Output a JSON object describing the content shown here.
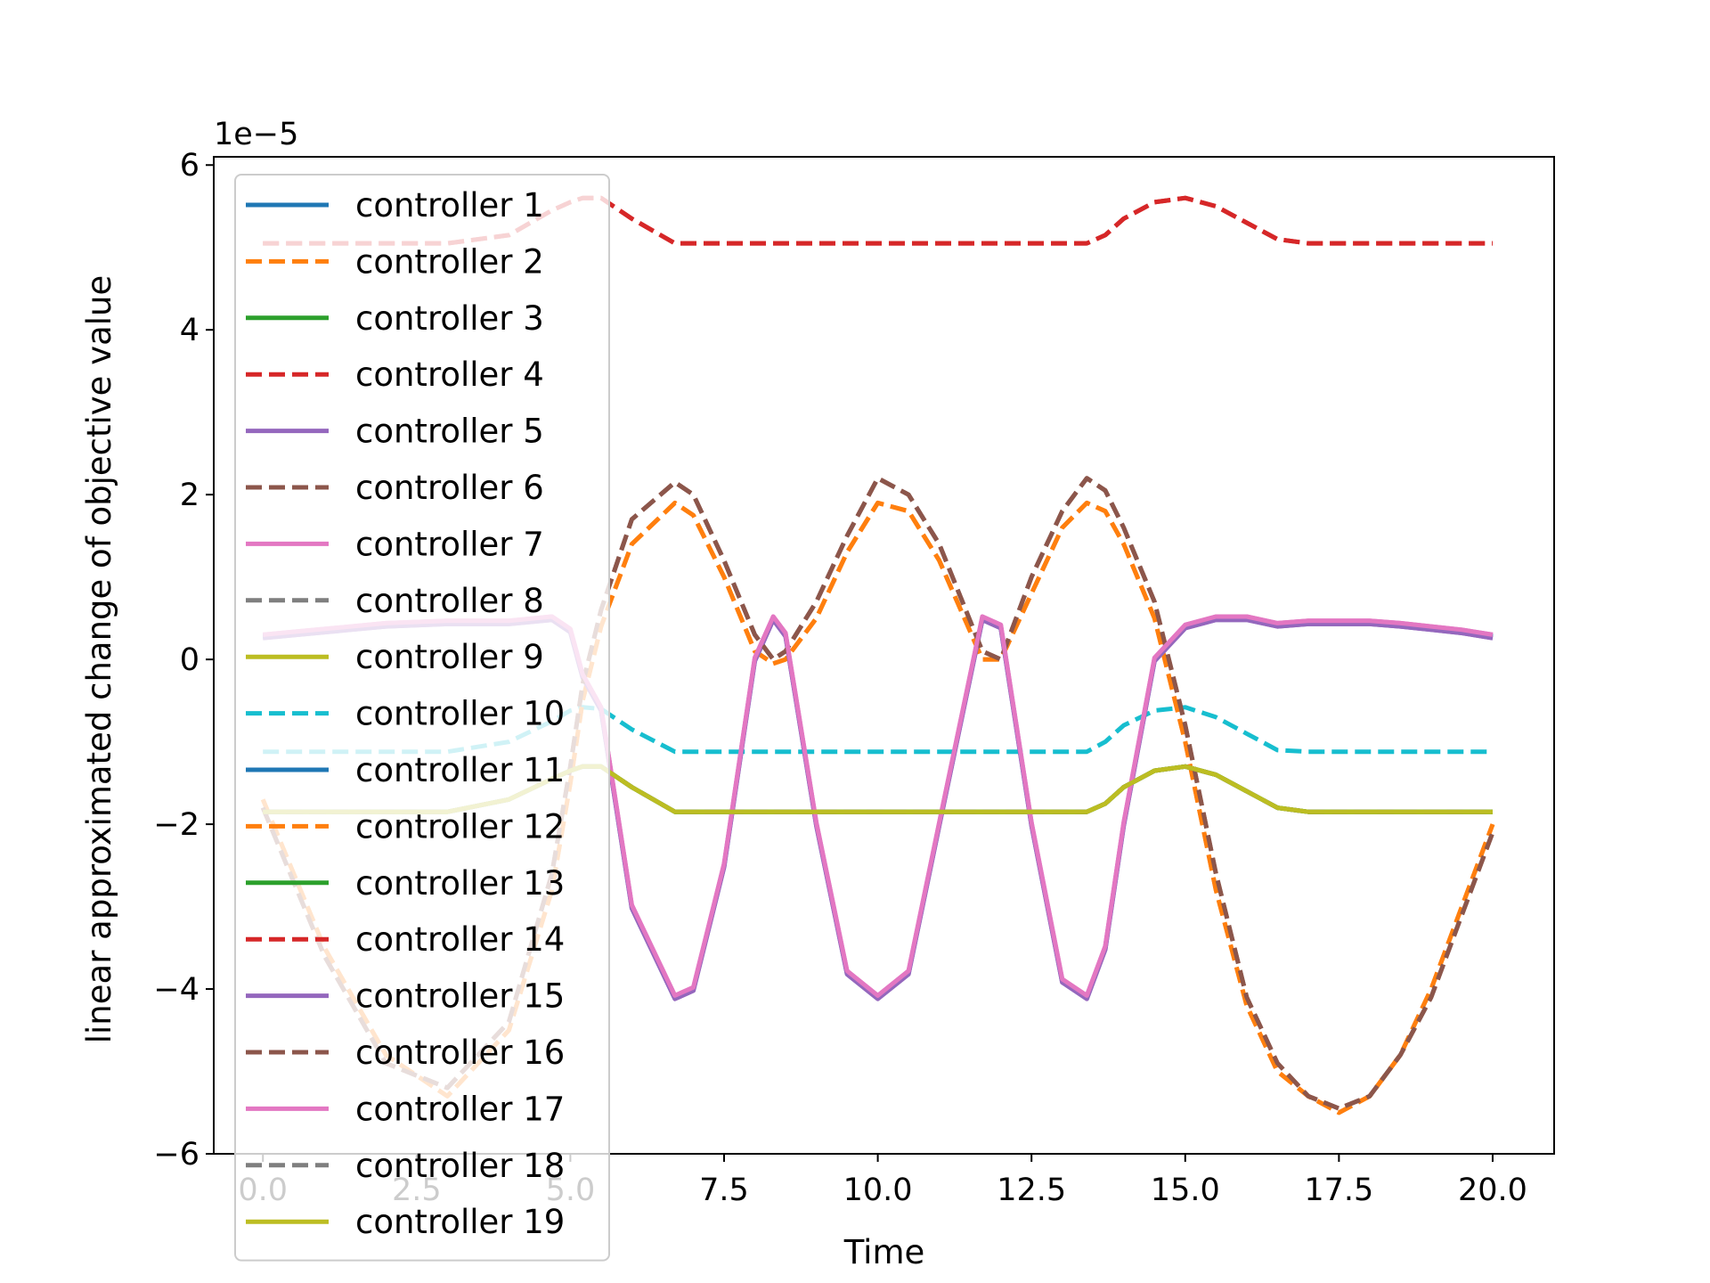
{
  "chart_data": {
    "type": "line",
    "title": "",
    "xlabel": "Time",
    "ylabel": "linear approximated change of objective value",
    "y_offset_text": "1e−5",
    "xlim": [
      -0.8,
      21.0
    ],
    "ylim": [
      -6.0,
      6.1
    ],
    "x_ticks": [
      0.0,
      2.5,
      5.0,
      7.5,
      10.0,
      12.5,
      15.0,
      17.5,
      20.0
    ],
    "x_tick_labels": [
      "0.0",
      "2.5",
      "5.0",
      "7.5",
      "10.0",
      "12.5",
      "15.0",
      "17.5",
      "20.0"
    ],
    "y_ticks": [
      -6,
      -4,
      -2,
      0,
      2,
      4,
      6
    ],
    "y_tick_labels": [
      "−6",
      "−4",
      "−2",
      "0",
      "2",
      "4",
      "6"
    ],
    "legend_position": "upper-left",
    "grid": false,
    "x": [
      0,
      1,
      2,
      3,
      4,
      4.7,
      5,
      5.2,
      5.5,
      6,
      6.7,
      7,
      7.5,
      8,
      8.3,
      8.5,
      9,
      9.5,
      10,
      10.5,
      11,
      11.7,
      12,
      12.5,
      13,
      13.4,
      13.7,
      14,
      14.5,
      15,
      15.5,
      16,
      16.5,
      17,
      17.5,
      18,
      18.5,
      19,
      19.5,
      20
    ],
    "series": [
      {
        "name": "controller 1",
        "color": "#1f77b4",
        "dash": "solid",
        "values": [
          0.28,
          0.35,
          0.42,
          0.45,
          0.45,
          0.5,
          0.35,
          -0.2,
          -0.6,
          -3.0,
          -4.1,
          -4.0,
          -2.5,
          0.0,
          0.5,
          0.3,
          -2.0,
          -3.8,
          -4.1,
          -3.8,
          -2.0,
          0.5,
          0.4,
          -2.0,
          -3.9,
          -4.1,
          -3.5,
          -2.0,
          0.0,
          0.4,
          0.5,
          0.5,
          0.42,
          0.45,
          0.45,
          0.45,
          0.42,
          0.38,
          0.34,
          0.28
        ]
      },
      {
        "name": "controller 2",
        "color": "#ff7f0e",
        "dash": "dashed",
        "values": [
          -1.7,
          -3.5,
          -4.8,
          -5.3,
          -4.5,
          -2.8,
          -1.5,
          -0.5,
          0.4,
          1.4,
          1.9,
          1.75,
          1.0,
          0.1,
          -0.05,
          0.0,
          0.5,
          1.3,
          1.9,
          1.8,
          1.2,
          0.0,
          0.0,
          0.8,
          1.6,
          1.9,
          1.8,
          1.4,
          0.5,
          -1.0,
          -2.8,
          -4.2,
          -5.0,
          -5.3,
          -5.5,
          -5.3,
          -4.8,
          -4.0,
          -3.0,
          -2.0
        ]
      },
      {
        "name": "controller 3",
        "color": "#2ca02c",
        "dash": "solid",
        "values": [
          -1.85,
          -1.85,
          -1.85,
          -1.85,
          -1.7,
          -1.45,
          -1.35,
          -1.3,
          -1.3,
          -1.55,
          -1.85,
          -1.85,
          -1.85,
          -1.85,
          -1.85,
          -1.85,
          -1.85,
          -1.85,
          -1.85,
          -1.85,
          -1.85,
          -1.85,
          -1.85,
          -1.85,
          -1.85,
          -1.85,
          -1.75,
          -1.55,
          -1.35,
          -1.3,
          -1.4,
          -1.6,
          -1.8,
          -1.85,
          -1.85,
          -1.85,
          -1.85,
          -1.85,
          -1.85,
          -1.85
        ]
      },
      {
        "name": "controller 4",
        "color": "#d62728",
        "dash": "dashed",
        "values": [
          5.05,
          5.05,
          5.05,
          5.05,
          5.15,
          5.45,
          5.55,
          5.6,
          5.6,
          5.35,
          5.05,
          5.05,
          5.05,
          5.05,
          5.05,
          5.05,
          5.05,
          5.05,
          5.05,
          5.05,
          5.05,
          5.05,
          5.05,
          5.05,
          5.05,
          5.05,
          5.15,
          5.35,
          5.55,
          5.6,
          5.5,
          5.3,
          5.1,
          5.05,
          5.05,
          5.05,
          5.05,
          5.05,
          5.05,
          5.05
        ]
      },
      {
        "name": "controller 5",
        "color": "#9467bd",
        "dash": "solid",
        "values": [
          0.26,
          0.33,
          0.4,
          0.43,
          0.43,
          0.48,
          0.33,
          -0.22,
          -0.62,
          -3.02,
          -4.12,
          -4.02,
          -2.52,
          -0.02,
          0.48,
          0.28,
          -2.02,
          -3.82,
          -4.12,
          -3.82,
          -2.02,
          0.48,
          0.38,
          -2.02,
          -3.92,
          -4.12,
          -3.52,
          -2.02,
          -0.02,
          0.38,
          0.48,
          0.48,
          0.4,
          0.43,
          0.43,
          0.43,
          0.4,
          0.36,
          0.32,
          0.26
        ]
      },
      {
        "name": "controller 6",
        "color": "#8c564b",
        "dash": "dashed",
        "values": [
          -1.8,
          -3.6,
          -4.9,
          -5.2,
          -4.4,
          -2.6,
          -1.3,
          -0.3,
          0.6,
          1.7,
          2.15,
          2.0,
          1.2,
          0.3,
          0.0,
          0.1,
          0.7,
          1.5,
          2.2,
          2.0,
          1.4,
          0.1,
          0.0,
          1.0,
          1.8,
          2.2,
          2.05,
          1.6,
          0.7,
          -0.8,
          -2.6,
          -4.1,
          -4.9,
          -5.3,
          -5.45,
          -5.3,
          -4.8,
          -4.1,
          -3.1,
          -2.1
        ]
      },
      {
        "name": "controller 7",
        "color": "#e377c2",
        "dash": "solid",
        "values": [
          0.3,
          0.37,
          0.44,
          0.47,
          0.47,
          0.52,
          0.37,
          -0.18,
          -0.58,
          -2.98,
          -4.08,
          -3.98,
          -2.48,
          0.02,
          0.52,
          0.32,
          -1.98,
          -3.78,
          -4.08,
          -3.78,
          -1.98,
          0.52,
          0.42,
          -1.98,
          -3.88,
          -4.08,
          -3.48,
          -1.98,
          0.02,
          0.42,
          0.52,
          0.52,
          0.44,
          0.47,
          0.47,
          0.47,
          0.44,
          0.4,
          0.36,
          0.3
        ]
      },
      {
        "name": "controller 8",
        "color": "#7f7f7f",
        "dash": "dashed",
        "values": [
          -1.85,
          -1.85,
          -1.85,
          -1.85,
          -1.7,
          -1.45,
          -1.35,
          -1.3,
          -1.3,
          -1.55,
          -1.85,
          -1.85,
          -1.85,
          -1.85,
          -1.85,
          -1.85,
          -1.85,
          -1.85,
          -1.85,
          -1.85,
          -1.85,
          -1.85,
          -1.85,
          -1.85,
          -1.85,
          -1.85,
          -1.75,
          -1.55,
          -1.35,
          -1.3,
          -1.4,
          -1.6,
          -1.8,
          -1.85,
          -1.85,
          -1.85,
          -1.85,
          -1.85,
          -1.85,
          -1.85
        ]
      },
      {
        "name": "controller 9",
        "color": "#bcbd22",
        "dash": "solid",
        "values": [
          -1.85,
          -1.85,
          -1.85,
          -1.85,
          -1.7,
          -1.45,
          -1.35,
          -1.3,
          -1.3,
          -1.55,
          -1.85,
          -1.85,
          -1.85,
          -1.85,
          -1.85,
          -1.85,
          -1.85,
          -1.85,
          -1.85,
          -1.85,
          -1.85,
          -1.85,
          -1.85,
          -1.85,
          -1.85,
          -1.85,
          -1.75,
          -1.55,
          -1.35,
          -1.3,
          -1.4,
          -1.6,
          -1.8,
          -1.85,
          -1.85,
          -1.85,
          -1.85,
          -1.85,
          -1.85,
          -1.85
        ]
      },
      {
        "name": "controller 10",
        "color": "#17becf",
        "dash": "dashed",
        "values": [
          -1.12,
          -1.12,
          -1.12,
          -1.12,
          -1.0,
          -0.75,
          -0.62,
          -0.58,
          -0.6,
          -0.85,
          -1.12,
          -1.12,
          -1.12,
          -1.12,
          -1.12,
          -1.12,
          -1.12,
          -1.12,
          -1.12,
          -1.12,
          -1.12,
          -1.12,
          -1.12,
          -1.12,
          -1.12,
          -1.12,
          -1.0,
          -0.8,
          -0.62,
          -0.58,
          -0.7,
          -0.9,
          -1.1,
          -1.12,
          -1.12,
          -1.12,
          -1.12,
          -1.12,
          -1.12,
          -1.12
        ]
      },
      {
        "name": "controller 11",
        "color": "#1f77b4",
        "dash": "solid",
        "values": [
          0.28,
          0.35,
          0.42,
          0.45,
          0.45,
          0.5,
          0.35,
          -0.2,
          -0.6,
          -3.0,
          -4.1,
          -4.0,
          -2.5,
          0.0,
          0.5,
          0.3,
          -2.0,
          -3.8,
          -4.1,
          -3.8,
          -2.0,
          0.5,
          0.4,
          -2.0,
          -3.9,
          -4.1,
          -3.5,
          -2.0,
          0.0,
          0.4,
          0.5,
          0.5,
          0.42,
          0.45,
          0.45,
          0.45,
          0.42,
          0.38,
          0.34,
          0.28
        ]
      },
      {
        "name": "controller 12",
        "color": "#ff7f0e",
        "dash": "dashed",
        "values": [
          -1.7,
          -3.5,
          -4.8,
          -5.3,
          -4.5,
          -2.8,
          -1.5,
          -0.5,
          0.4,
          1.4,
          1.9,
          1.75,
          1.0,
          0.1,
          -0.05,
          0.0,
          0.5,
          1.3,
          1.9,
          1.8,
          1.2,
          0.0,
          0.0,
          0.8,
          1.6,
          1.9,
          1.8,
          1.4,
          0.5,
          -1.0,
          -2.8,
          -4.2,
          -5.0,
          -5.3,
          -5.5,
          -5.3,
          -4.8,
          -4.0,
          -3.0,
          -2.0
        ]
      },
      {
        "name": "controller 13",
        "color": "#2ca02c",
        "dash": "solid",
        "values": [
          -1.85,
          -1.85,
          -1.85,
          -1.85,
          -1.7,
          -1.45,
          -1.35,
          -1.3,
          -1.3,
          -1.55,
          -1.85,
          -1.85,
          -1.85,
          -1.85,
          -1.85,
          -1.85,
          -1.85,
          -1.85,
          -1.85,
          -1.85,
          -1.85,
          -1.85,
          -1.85,
          -1.85,
          -1.85,
          -1.85,
          -1.75,
          -1.55,
          -1.35,
          -1.3,
          -1.4,
          -1.6,
          -1.8,
          -1.85,
          -1.85,
          -1.85,
          -1.85,
          -1.85,
          -1.85,
          -1.85
        ]
      },
      {
        "name": "controller 14",
        "color": "#d62728",
        "dash": "dashed",
        "values": [
          5.05,
          5.05,
          5.05,
          5.05,
          5.15,
          5.45,
          5.55,
          5.6,
          5.6,
          5.35,
          5.05,
          5.05,
          5.05,
          5.05,
          5.05,
          5.05,
          5.05,
          5.05,
          5.05,
          5.05,
          5.05,
          5.05,
          5.05,
          5.05,
          5.05,
          5.05,
          5.15,
          5.35,
          5.55,
          5.6,
          5.5,
          5.3,
          5.1,
          5.05,
          5.05,
          5.05,
          5.05,
          5.05,
          5.05,
          5.05
        ]
      },
      {
        "name": "controller 15",
        "color": "#9467bd",
        "dash": "solid",
        "values": [
          0.26,
          0.33,
          0.4,
          0.43,
          0.43,
          0.48,
          0.33,
          -0.22,
          -0.62,
          -3.02,
          -4.12,
          -4.02,
          -2.52,
          -0.02,
          0.48,
          0.28,
          -2.02,
          -3.82,
          -4.12,
          -3.82,
          -2.02,
          0.48,
          0.38,
          -2.02,
          -3.92,
          -4.12,
          -3.52,
          -2.02,
          -0.02,
          0.38,
          0.48,
          0.48,
          0.4,
          0.43,
          0.43,
          0.43,
          0.4,
          0.36,
          0.32,
          0.26
        ]
      },
      {
        "name": "controller 16",
        "color": "#8c564b",
        "dash": "dashed",
        "values": [
          -1.8,
          -3.6,
          -4.9,
          -5.2,
          -4.4,
          -2.6,
          -1.3,
          -0.3,
          0.6,
          1.7,
          2.15,
          2.0,
          1.2,
          0.3,
          0.0,
          0.1,
          0.7,
          1.5,
          2.2,
          2.0,
          1.4,
          0.1,
          0.0,
          1.0,
          1.8,
          2.2,
          2.05,
          1.6,
          0.7,
          -0.8,
          -2.6,
          -4.1,
          -4.9,
          -5.3,
          -5.45,
          -5.3,
          -4.8,
          -4.1,
          -3.1,
          -2.1
        ]
      },
      {
        "name": "controller 17",
        "color": "#e377c2",
        "dash": "solid",
        "values": [
          0.3,
          0.37,
          0.44,
          0.47,
          0.47,
          0.52,
          0.37,
          -0.18,
          -0.58,
          -2.98,
          -4.08,
          -3.98,
          -2.48,
          0.02,
          0.52,
          0.32,
          -1.98,
          -3.78,
          -4.08,
          -3.78,
          -1.98,
          0.52,
          0.42,
          -1.98,
          -3.88,
          -4.08,
          -3.48,
          -1.98,
          0.02,
          0.42,
          0.52,
          0.52,
          0.44,
          0.47,
          0.47,
          0.47,
          0.44,
          0.4,
          0.36,
          0.3
        ]
      },
      {
        "name": "controller 18",
        "color": "#7f7f7f",
        "dash": "dashed",
        "values": [
          -1.85,
          -1.85,
          -1.85,
          -1.85,
          -1.7,
          -1.45,
          -1.35,
          -1.3,
          -1.3,
          -1.55,
          -1.85,
          -1.85,
          -1.85,
          -1.85,
          -1.85,
          -1.85,
          -1.85,
          -1.85,
          -1.85,
          -1.85,
          -1.85,
          -1.85,
          -1.85,
          -1.85,
          -1.85,
          -1.85,
          -1.75,
          -1.55,
          -1.35,
          -1.3,
          -1.4,
          -1.6,
          -1.8,
          -1.85,
          -1.85,
          -1.85,
          -1.85,
          -1.85,
          -1.85,
          -1.85
        ]
      },
      {
        "name": "controller 19",
        "color": "#bcbd22",
        "dash": "solid",
        "values": [
          -1.85,
          -1.85,
          -1.85,
          -1.85,
          -1.7,
          -1.45,
          -1.35,
          -1.3,
          -1.3,
          -1.55,
          -1.85,
          -1.85,
          -1.85,
          -1.85,
          -1.85,
          -1.85,
          -1.85,
          -1.85,
          -1.85,
          -1.85,
          -1.85,
          -1.85,
          -1.85,
          -1.85,
          -1.85,
          -1.85,
          -1.75,
          -1.55,
          -1.35,
          -1.3,
          -1.4,
          -1.6,
          -1.8,
          -1.85,
          -1.85,
          -1.85,
          -1.85,
          -1.85,
          -1.85,
          -1.85
        ]
      }
    ]
  }
}
